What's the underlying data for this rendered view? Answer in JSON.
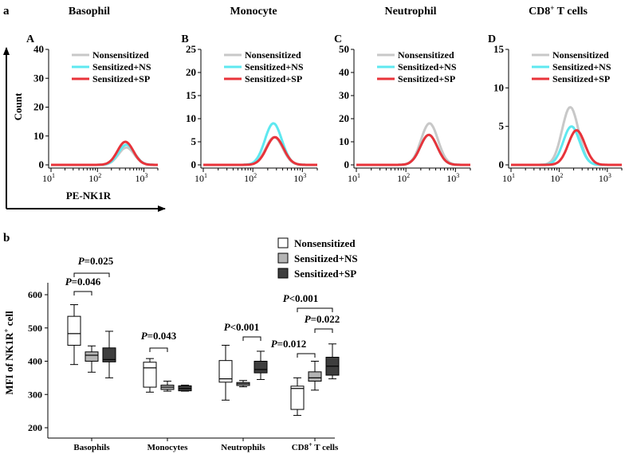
{
  "panel_a": {
    "letter": "a",
    "axis_y_label": "Count",
    "axis_x_label": "PE-NK1R",
    "legend": [
      "Nonsensitized",
      "Sensitized+NS",
      "Sensitized+SP"
    ],
    "legend_colors": [
      "#c8c8c8",
      "#5ee8f0",
      "#e8333a"
    ],
    "x_ticks": [
      "10",
      "10",
      "10"
    ],
    "x_tick_exps": [
      "1",
      "2",
      "3"
    ]
  },
  "panel_b": {
    "letter": "b",
    "ylabel_pre": "MFI of NK1R",
    "ylabel_sup": "+",
    "ylabel_post": " cell",
    "legend": [
      "Nonsensitized",
      "Sensitized+NS",
      "Sensitized+SP"
    ],
    "legend_colors": [
      "#ffffff",
      "#b4b4b4",
      "#3e3e3e"
    ],
    "y_ticks": [
      "600",
      "500",
      "400",
      "300",
      "200"
    ],
    "category_labels": [
      {
        "pre": "Basophils",
        "sup": "",
        "post": ""
      },
      {
        "pre": "Monocytes",
        "sup": "",
        "post": ""
      },
      {
        "pre": "Neutrophils",
        "sup": "",
        "post": ""
      },
      {
        "pre": "CD8",
        "sup": "+",
        "post": " T cells"
      }
    ],
    "pvalues": [
      "=0.025",
      "=0.046",
      "=0.043",
      "<0.001",
      "<0.001",
      "=0.022",
      "=0.012"
    ],
    "p_letter": "P"
  },
  "chart_data": [
    {
      "type": "line",
      "title": "Basophil",
      "panel_label": "A",
      "xlabel": "PE-NK1R",
      "ylabel": "Count",
      "x_scale": "log",
      "xlim": [
        10,
        2000
      ],
      "ylim": [
        0,
        40
      ],
      "y_ticks": [
        0,
        10,
        20,
        30,
        40
      ],
      "series": [
        {
          "name": "Nonsensitized",
          "peak_x": 420,
          "peak_y": 6
        },
        {
          "name": "Sensitized+NS",
          "peak_x": 420,
          "peak_y": 7
        },
        {
          "name": "Sensitized+SP",
          "peak_x": 400,
          "peak_y": 8
        }
      ]
    },
    {
      "type": "line",
      "title": "Monocyte",
      "panel_label": "B",
      "x_scale": "log",
      "xlim": [
        10,
        2000
      ],
      "ylim": [
        0,
        25
      ],
      "y_ticks": [
        0,
        5,
        10,
        15,
        20,
        25
      ],
      "series": [
        {
          "name": "Nonsensitized",
          "peak_x": 270,
          "peak_y": 6
        },
        {
          "name": "Sensitized+NS",
          "peak_x": 260,
          "peak_y": 9
        },
        {
          "name": "Sensitized+SP",
          "peak_x": 280,
          "peak_y": 6
        }
      ]
    },
    {
      "type": "line",
      "title": "Neutrophil",
      "panel_label": "C",
      "x_scale": "log",
      "xlim": [
        10,
        2000
      ],
      "ylim": [
        0,
        50
      ],
      "y_ticks": [
        0,
        10,
        20,
        30,
        40,
        50
      ],
      "series": [
        {
          "name": "Nonsensitized",
          "peak_x": 300,
          "peak_y": 18
        },
        {
          "name": "Sensitized+NS",
          "peak_x": 290,
          "peak_y": 13
        },
        {
          "name": "Sensitized+SP",
          "peak_x": 290,
          "peak_y": 13
        }
      ]
    },
    {
      "type": "line",
      "title": "CD8",
      "title_sup": "+",
      "title_post": " T cells",
      "panel_label": "D",
      "x_scale": "log",
      "xlim": [
        10,
        2000
      ],
      "ylim": [
        0,
        15
      ],
      "y_ticks": [
        0,
        5,
        10,
        15
      ],
      "series": [
        {
          "name": "Nonsensitized",
          "peak_x": 170,
          "peak_y": 7.5
        },
        {
          "name": "Sensitized+NS",
          "peak_x": 180,
          "peak_y": 5
        },
        {
          "name": "Sensitized+SP",
          "peak_x": 230,
          "peak_y": 4.5
        }
      ]
    },
    {
      "type": "box",
      "ylabel": "MFI of NK1R+ cell",
      "ylim": [
        200,
        600
      ],
      "categories": [
        "Basophils",
        "Monocytes",
        "Neutrophils",
        "CD8+ T cells"
      ],
      "series": [
        {
          "name": "Nonsensitized",
          "boxes": [
            {
              "min": 390,
              "q1": 448,
              "median": 483,
              "q3": 535,
              "max": 570
            },
            {
              "min": 307,
              "q1": 322,
              "median": 380,
              "q3": 397,
              "max": 408
            },
            {
              "min": 283,
              "q1": 337,
              "median": 347,
              "q3": 402,
              "max": 448
            },
            {
              "min": 237,
              "q1": 255,
              "median": 318,
              "q3": 325,
              "max": 350
            }
          ]
        },
        {
          "name": "Sensitized+NS",
          "boxes": [
            {
              "min": 367,
              "q1": 400,
              "median": 418,
              "q3": 428,
              "max": 446
            },
            {
              "min": 310,
              "q1": 315,
              "median": 322,
              "q3": 328,
              "max": 340
            },
            {
              "min": 323,
              "q1": 327,
              "median": 332,
              "q3": 336,
              "max": 342
            },
            {
              "min": 313,
              "q1": 340,
              "median": 350,
              "q3": 368,
              "max": 400
            }
          ]
        },
        {
          "name": "Sensitized+SP",
          "boxes": [
            {
              "min": 350,
              "q1": 398,
              "median": 405,
              "q3": 440,
              "max": 490
            },
            {
              "min": 310,
              "q1": 311,
              "median": 318,
              "q3": 326,
              "max": 328
            },
            {
              "min": 345,
              "q1": 365,
              "median": 375,
              "q3": 400,
              "max": 430
            },
            {
              "min": 347,
              "q1": 358,
              "median": 385,
              "q3": 412,
              "max": 452
            }
          ]
        }
      ],
      "comparisons": [
        {
          "category": "Basophils",
          "groups": [
            "Nonsensitized",
            "Sensitized+SP"
          ],
          "p": "P=0.025"
        },
        {
          "category": "Basophils",
          "groups": [
            "Nonsensitized",
            "Sensitized+NS"
          ],
          "p": "P=0.046"
        },
        {
          "category": "Monocytes",
          "groups": [
            "Nonsensitized",
            "Sensitized+NS"
          ],
          "p": "P=0.043"
        },
        {
          "category": "Neutrophils",
          "groups": [
            "Sensitized+NS",
            "Sensitized+SP"
          ],
          "p": "P<0.001"
        },
        {
          "category": "CD8+ T cells",
          "groups": [
            "Nonsensitized",
            "Sensitized+SP"
          ],
          "p": "P<0.001"
        },
        {
          "category": "CD8+ T cells",
          "groups": [
            "Sensitized+NS",
            "Sensitized+SP"
          ],
          "p": "P=0.022"
        },
        {
          "category": "CD8+ T cells",
          "groups": [
            "Nonsensitized",
            "Sensitized+NS"
          ],
          "p": "P=0.012"
        }
      ]
    }
  ]
}
